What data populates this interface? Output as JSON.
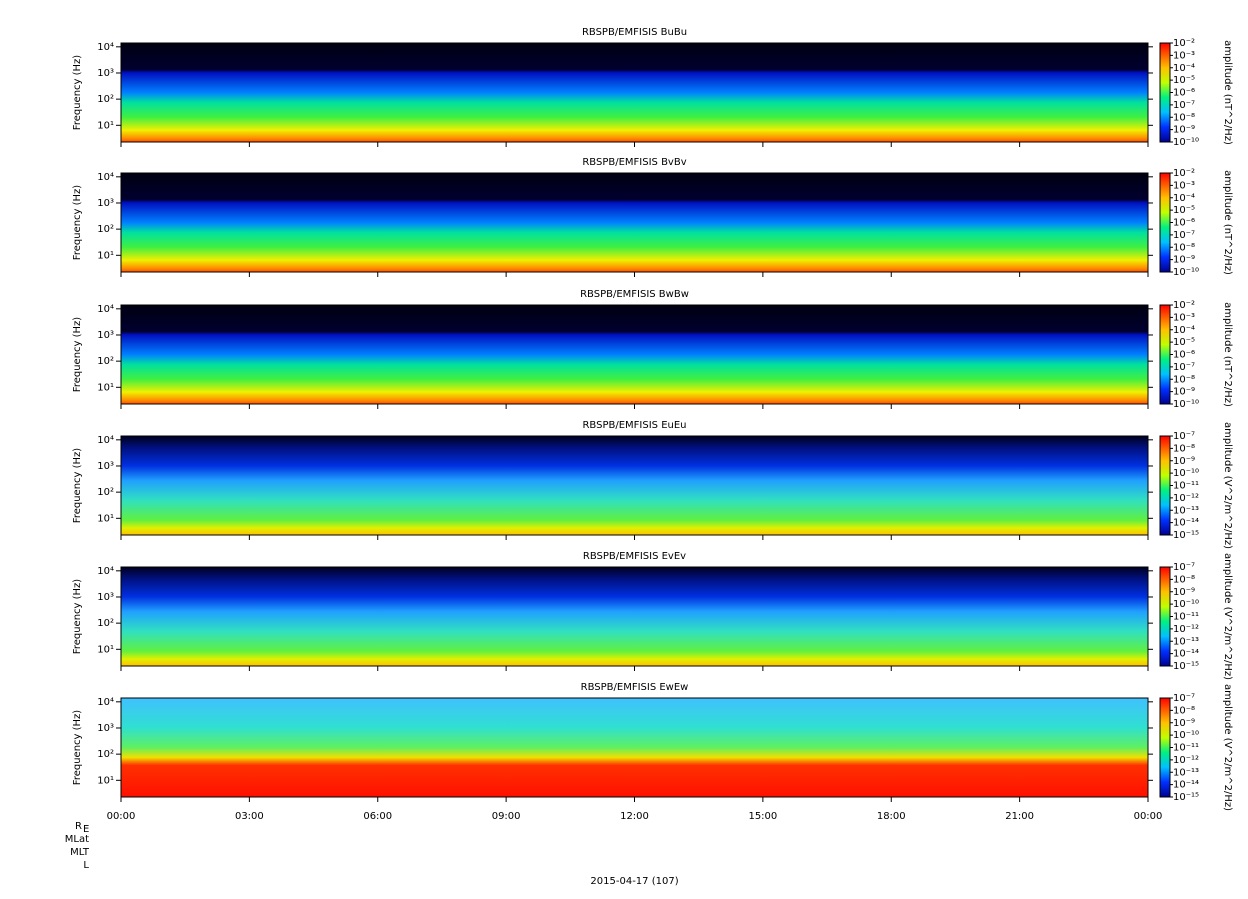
{
  "chart_data": [
    {
      "type": "spectrogram",
      "title": "RBSPB/EMFISIS  BuBu",
      "ylabel": "Frequency (Hz)",
      "yscale": "log",
      "ylim": [
        2.3,
        14000
      ],
      "yticks": [
        {
          "value": 10,
          "label": "10¹"
        },
        {
          "value": 100,
          "label": "10²"
        },
        {
          "value": 1000,
          "label": "10³"
        },
        {
          "value": 10000,
          "label": "10⁴"
        }
      ],
      "colorbar_label": "amplitude (nT^2/Hz)",
      "clim": [
        1e-10,
        0.01
      ],
      "cticks": [
        {
          "value": 0.01,
          "label": "10⁻²"
        },
        {
          "value": 0.001,
          "label": "10⁻³"
        },
        {
          "value": 0.0001,
          "label": "10⁻⁴"
        },
        {
          "value": 1e-05,
          "label": "10⁻⁵"
        },
        {
          "value": 1e-06,
          "label": "10⁻⁶"
        },
        {
          "value": 1e-07,
          "label": "10⁻⁷"
        },
        {
          "value": 1e-08,
          "label": "10⁻⁸"
        },
        {
          "value": 1e-09,
          "label": "10⁻⁹"
        },
        {
          "value": 1e-10,
          "label": "10⁻¹⁰"
        }
      ]
    },
    {
      "type": "spectrogram",
      "title": "RBSPB/EMFISIS  BvBv",
      "ylabel": "Frequency (Hz)",
      "yscale": "log",
      "ylim": [
        2.3,
        14000
      ],
      "yticks": [
        {
          "value": 10,
          "label": "10¹"
        },
        {
          "value": 100,
          "label": "10²"
        },
        {
          "value": 1000,
          "label": "10³"
        },
        {
          "value": 10000,
          "label": "10⁴"
        }
      ],
      "colorbar_label": "amplitude (nT^2/Hz)",
      "clim": [
        1e-10,
        0.01
      ],
      "cticks": [
        {
          "value": 0.01,
          "label": "10⁻²"
        },
        {
          "value": 0.001,
          "label": "10⁻³"
        },
        {
          "value": 0.0001,
          "label": "10⁻⁴"
        },
        {
          "value": 1e-05,
          "label": "10⁻⁵"
        },
        {
          "value": 1e-06,
          "label": "10⁻⁶"
        },
        {
          "value": 1e-07,
          "label": "10⁻⁷"
        },
        {
          "value": 1e-08,
          "label": "10⁻⁸"
        },
        {
          "value": 1e-09,
          "label": "10⁻⁹"
        },
        {
          "value": 1e-10,
          "label": "10⁻¹⁰"
        }
      ]
    },
    {
      "type": "spectrogram",
      "title": "RBSPB/EMFISIS  BwBw",
      "ylabel": "Frequency (Hz)",
      "yscale": "log",
      "ylim": [
        2.3,
        14000
      ],
      "yticks": [
        {
          "value": 10,
          "label": "10¹"
        },
        {
          "value": 100,
          "label": "10²"
        },
        {
          "value": 1000,
          "label": "10³"
        },
        {
          "value": 10000,
          "label": "10⁴"
        }
      ],
      "colorbar_label": "amplitude (nT^2/Hz)",
      "clim": [
        1e-10,
        0.01
      ],
      "cticks": [
        {
          "value": 0.01,
          "label": "10⁻²"
        },
        {
          "value": 0.001,
          "label": "10⁻³"
        },
        {
          "value": 0.0001,
          "label": "10⁻⁴"
        },
        {
          "value": 1e-05,
          "label": "10⁻⁵"
        },
        {
          "value": 1e-06,
          "label": "10⁻⁶"
        },
        {
          "value": 1e-07,
          "label": "10⁻⁷"
        },
        {
          "value": 1e-08,
          "label": "10⁻⁸"
        },
        {
          "value": 1e-09,
          "label": "10⁻⁹"
        },
        {
          "value": 1e-10,
          "label": "10⁻¹⁰"
        }
      ]
    },
    {
      "type": "spectrogram",
      "title": "RBSPB/EMFISIS  EuEu",
      "ylabel": "Frequency (Hz)",
      "yscale": "log",
      "ylim": [
        2.3,
        14000
      ],
      "yticks": [
        {
          "value": 10,
          "label": "10¹"
        },
        {
          "value": 100,
          "label": "10²"
        },
        {
          "value": 1000,
          "label": "10³"
        },
        {
          "value": 10000,
          "label": "10⁴"
        }
      ],
      "colorbar_label": "amplitude (V^2/m^2/Hz)",
      "clim": [
        1e-15,
        1e-07
      ],
      "cticks": [
        {
          "value": 1e-07,
          "label": "10⁻⁷"
        },
        {
          "value": 1e-08,
          "label": "10⁻⁸"
        },
        {
          "value": 1e-09,
          "label": "10⁻⁹"
        },
        {
          "value": 1e-10,
          "label": "10⁻¹⁰"
        },
        {
          "value": 1e-11,
          "label": "10⁻¹¹"
        },
        {
          "value": 1e-12,
          "label": "10⁻¹²"
        },
        {
          "value": 1e-13,
          "label": "10⁻¹³"
        },
        {
          "value": 1e-14,
          "label": "10⁻¹⁴"
        },
        {
          "value": 1e-15,
          "label": "10⁻¹⁵"
        }
      ]
    },
    {
      "type": "spectrogram",
      "title": "RBSPB/EMFISIS  EvEv",
      "ylabel": "Frequency (Hz)",
      "yscale": "log",
      "ylim": [
        2.3,
        14000
      ],
      "yticks": [
        {
          "value": 10,
          "label": "10¹"
        },
        {
          "value": 100,
          "label": "10²"
        },
        {
          "value": 1000,
          "label": "10³"
        },
        {
          "value": 10000,
          "label": "10⁴"
        }
      ],
      "colorbar_label": "amplitude (V^2/m^2/Hz)",
      "clim": [
        1e-15,
        1e-07
      ],
      "cticks": [
        {
          "value": 1e-07,
          "label": "10⁻⁷"
        },
        {
          "value": 1e-08,
          "label": "10⁻⁸"
        },
        {
          "value": 1e-09,
          "label": "10⁻⁹"
        },
        {
          "value": 1e-10,
          "label": "10⁻¹⁰"
        },
        {
          "value": 1e-11,
          "label": "10⁻¹¹"
        },
        {
          "value": 1e-12,
          "label": "10⁻¹²"
        },
        {
          "value": 1e-13,
          "label": "10⁻¹³"
        },
        {
          "value": 1e-14,
          "label": "10⁻¹⁴"
        },
        {
          "value": 1e-15,
          "label": "10⁻¹⁵"
        }
      ]
    },
    {
      "type": "spectrogram",
      "title": "RBSPB/EMFISIS  EwEw",
      "ylabel": "Frequency (Hz)",
      "yscale": "log",
      "ylim": [
        2.3,
        14000
      ],
      "yticks": [
        {
          "value": 10,
          "label": "10¹"
        },
        {
          "value": 100,
          "label": "10²"
        },
        {
          "value": 1000,
          "label": "10³"
        },
        {
          "value": 10000,
          "label": "10⁴"
        }
      ],
      "colorbar_label": "amplitude (V^2/m^2/Hz)",
      "clim": [
        1e-15,
        1e-07
      ],
      "cticks": [
        {
          "value": 1e-07,
          "label": "10⁻⁷"
        },
        {
          "value": 1e-08,
          "label": "10⁻⁸"
        },
        {
          "value": 1e-09,
          "label": "10⁻⁹"
        },
        {
          "value": 1e-10,
          "label": "10⁻¹⁰"
        },
        {
          "value": 1e-11,
          "label": "10⁻¹¹"
        },
        {
          "value": 1e-12,
          "label": "10⁻¹²"
        },
        {
          "value": 1e-13,
          "label": "10⁻¹³"
        },
        {
          "value": 1e-14,
          "label": "10⁻¹⁴"
        },
        {
          "value": 1e-15,
          "label": "10⁻¹⁵"
        }
      ],
      "xlim": [
        0,
        24
      ],
      "xticks": [
        {
          "value": 0,
          "label": "00:00"
        },
        {
          "value": 3,
          "label": "03:00"
        },
        {
          "value": 6,
          "label": "06:00"
        },
        {
          "value": 9,
          "label": "09:00"
        },
        {
          "value": 12,
          "label": "12:00"
        },
        {
          "value": 15,
          "label": "15:00"
        },
        {
          "value": 18,
          "label": "18:00"
        },
        {
          "value": 21,
          "label": "21:00"
        },
        {
          "value": 24,
          "label": "00:00"
        }
      ],
      "row_labels": [
        {
          "base": "R",
          "sub": "E"
        },
        "MLat",
        "MLT",
        "L"
      ],
      "xlabel": "2015-04-17 (107)"
    }
  ]
}
